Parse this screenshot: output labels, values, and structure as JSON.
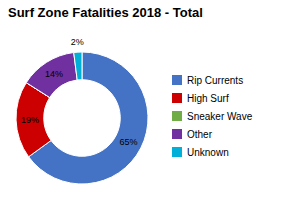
{
  "chart_data": {
    "type": "donut",
    "title": "Surf Zone Fatalities 2018 - Total",
    "categories": [
      "Rip Currents",
      "High Surf",
      "Sneaker Wave",
      "Other",
      "Unknown"
    ],
    "values": [
      65,
      19,
      0,
      14,
      2
    ],
    "value_labels": [
      "65%",
      "19%",
      null,
      "14%",
      "2%"
    ],
    "colors": [
      "#4472C4",
      "#CC0000",
      "#70AD47",
      "#7030A0",
      "#00B0D8"
    ],
    "data_labels": true,
    "legend": "right"
  }
}
